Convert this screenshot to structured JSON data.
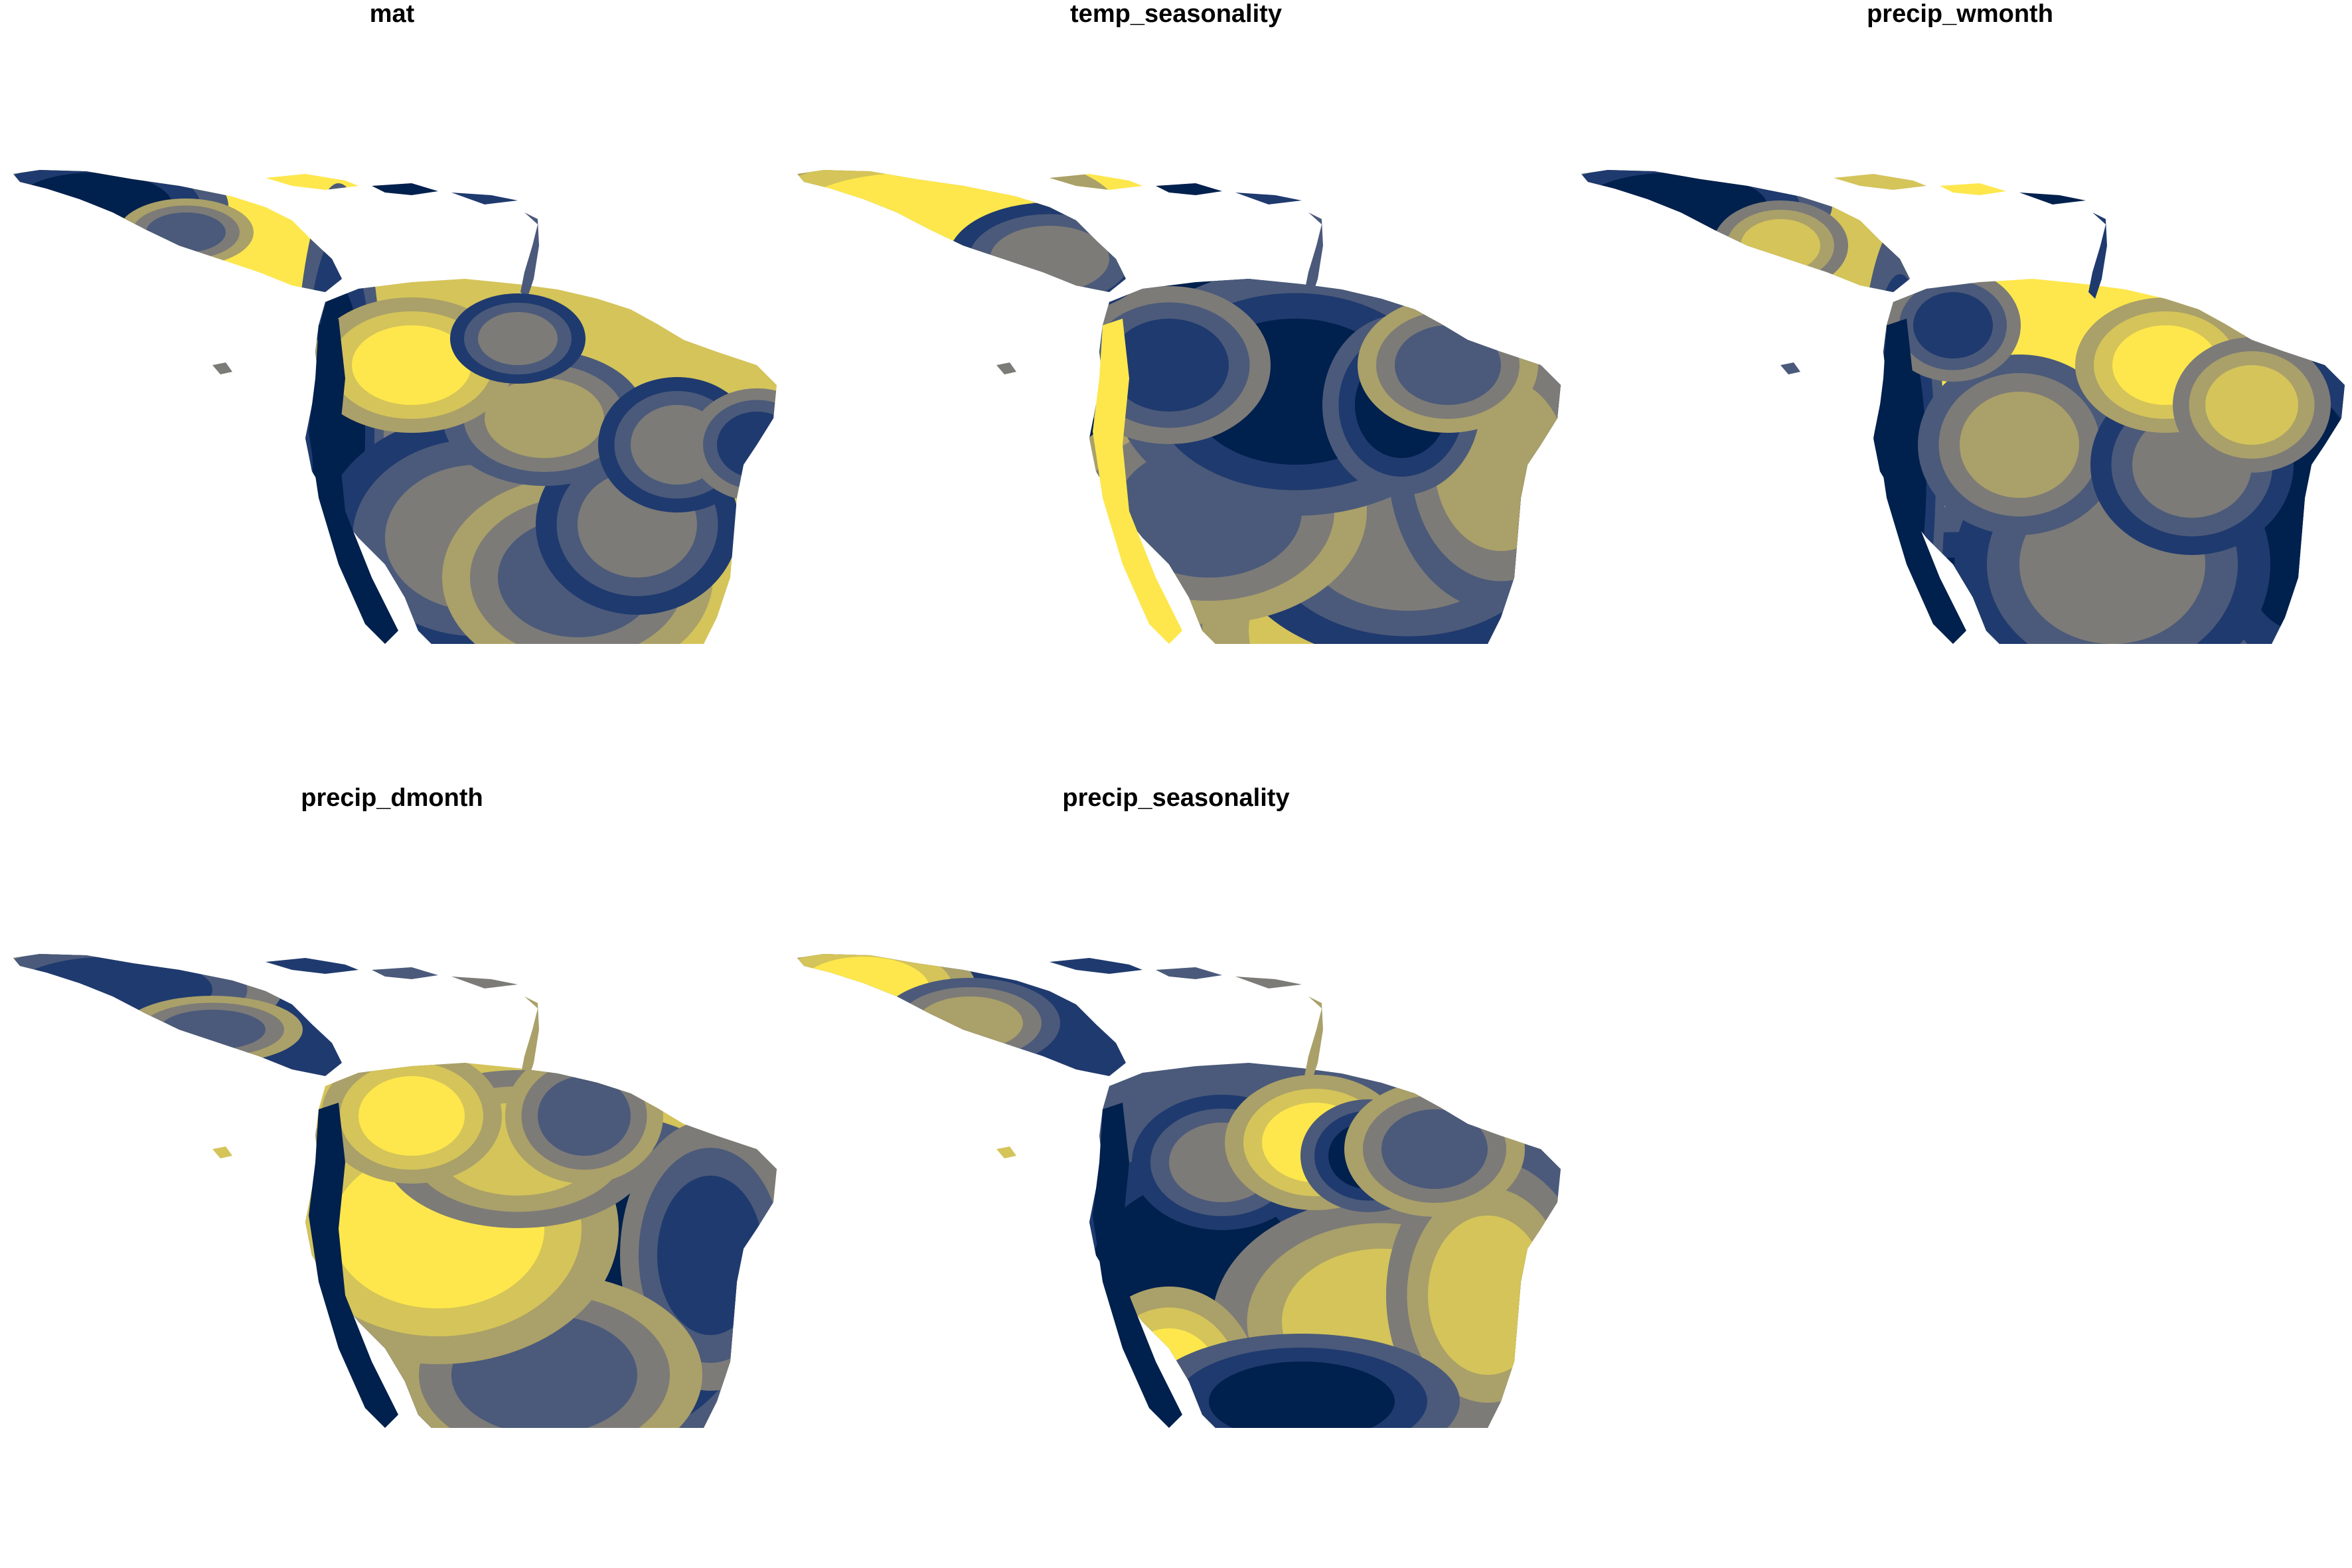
{
  "panels": [
    {
      "title": "mat",
      "pattern": "mat"
    },
    {
      "title": "temp_seasonality",
      "pattern": "temp"
    },
    {
      "title": "precip_wmonth",
      "pattern": "wmonth"
    },
    {
      "title": "precip_dmonth",
      "pattern": "dmonth"
    },
    {
      "title": "precip_seasonality",
      "pattern": "pseason"
    }
  ],
  "colors": {
    "palette": [
      "#00204d",
      "#1f3a6e",
      "#4b5a7a",
      "#7c7b78",
      "#aaa069",
      "#d4c45a",
      "#fde74c"
    ],
    "background": "#ffffff"
  }
}
